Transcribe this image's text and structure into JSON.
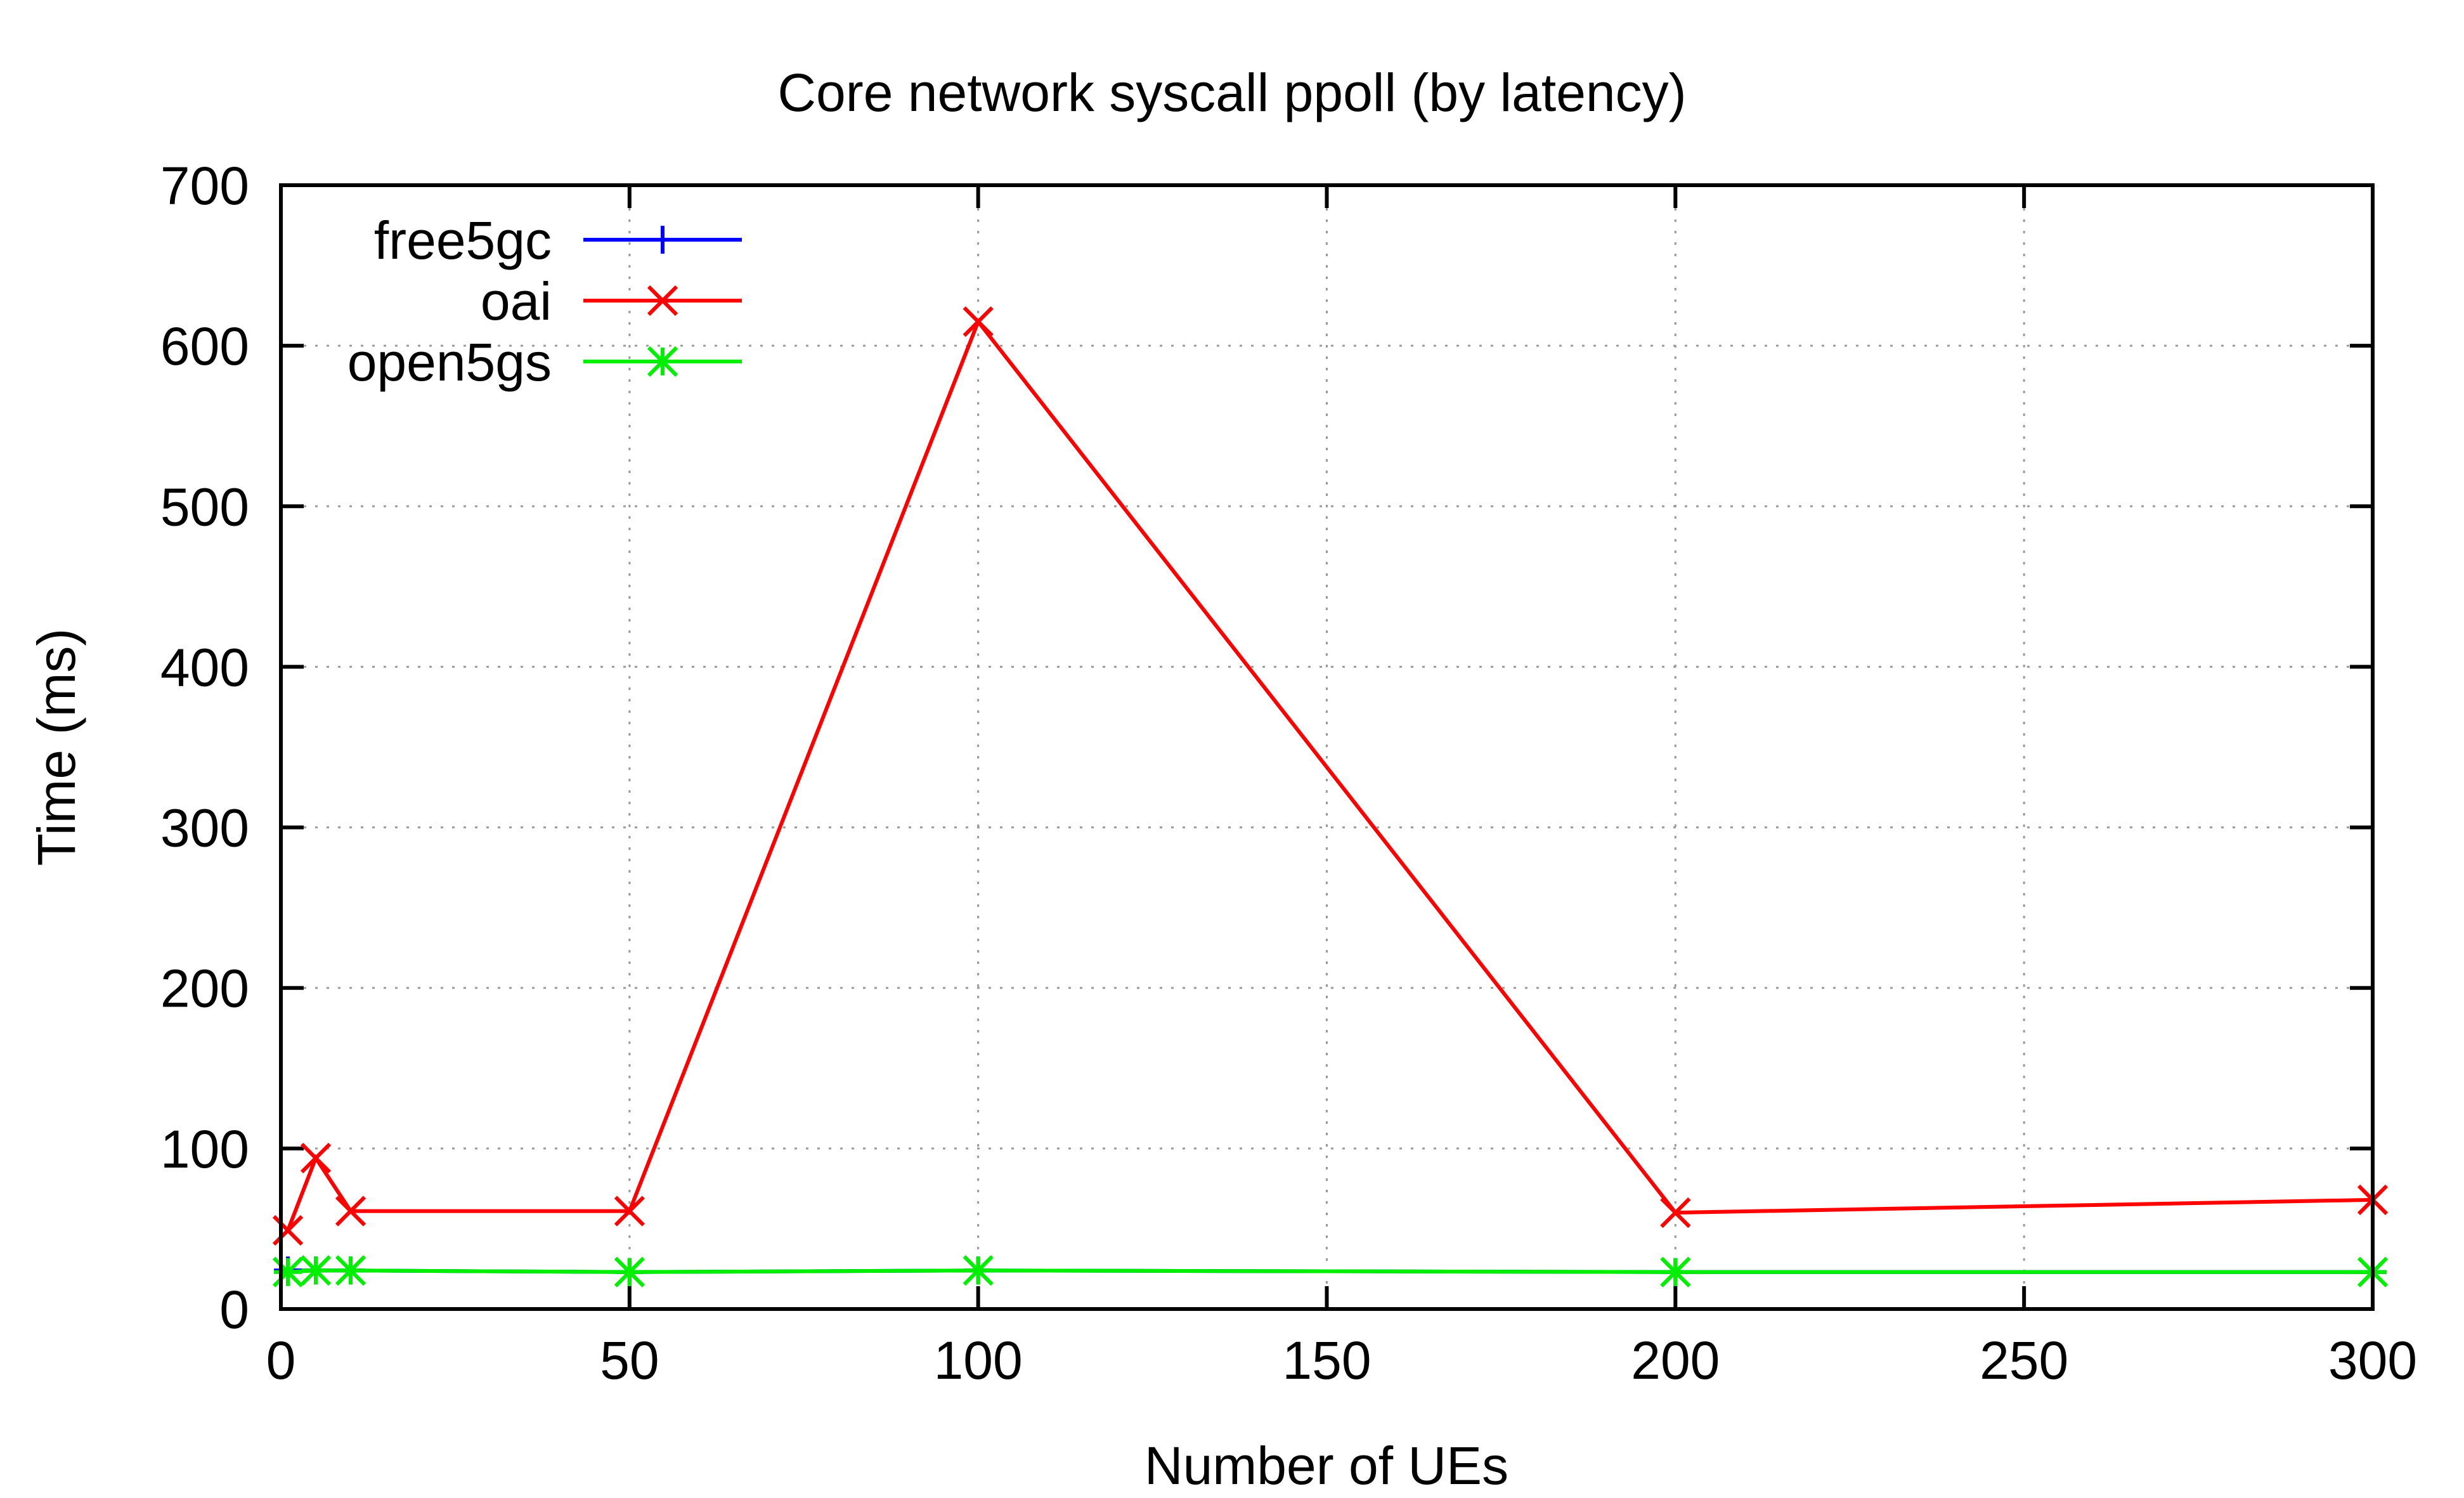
{
  "chart_data": {
    "type": "line",
    "title": "Core network syscall ppoll (by latency)",
    "xlabel": "Number of UEs",
    "ylabel": "Time (ms)",
    "xlim": [
      0,
      300
    ],
    "ylim": [
      0,
      700
    ],
    "xticks": [
      0,
      50,
      100,
      150,
      200,
      250,
      300
    ],
    "yticks": [
      0,
      100,
      200,
      300,
      400,
      500,
      600,
      700
    ],
    "grid": true,
    "legend_position": "top-left",
    "series": [
      {
        "name": "free5gc",
        "color": "#0000ff",
        "marker": "plus",
        "points": [
          [
            1,
            24
          ],
          [
            5,
            24
          ],
          [
            10,
            24
          ],
          [
            50,
            23
          ],
          [
            100,
            24
          ],
          [
            200,
            23
          ],
          [
            300,
            23
          ]
        ]
      },
      {
        "name": "oai",
        "color": "#ff0000",
        "marker": "cross",
        "points": [
          [
            1,
            49
          ],
          [
            5,
            94
          ],
          [
            10,
            61
          ],
          [
            50,
            61
          ],
          [
            100,
            615
          ],
          [
            200,
            60
          ],
          [
            300,
            68
          ]
        ]
      },
      {
        "name": "open5gs",
        "color": "#00ee00",
        "marker": "star",
        "points": [
          [
            1,
            23
          ],
          [
            5,
            24
          ],
          [
            10,
            24
          ],
          [
            50,
            23
          ],
          [
            100,
            24
          ],
          [
            200,
            23
          ],
          [
            300,
            23
          ]
        ]
      }
    ]
  }
}
